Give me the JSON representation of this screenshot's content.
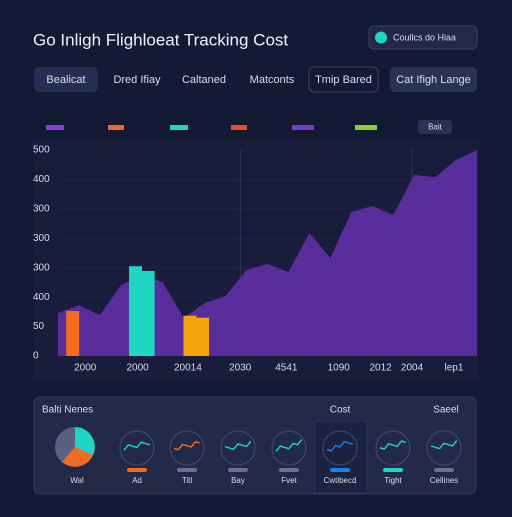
{
  "header": {
    "title": "Go Inligh Flighloeat Tracking Cost",
    "dropdown": "Coullcs do Hiaa"
  },
  "tabs": [
    "Bealicat",
    "Dred Ifiay",
    "Caltaned",
    "Matconts",
    "Tmip Bared",
    "Cat Ifigh Lange"
  ],
  "legend_chip": "Bait",
  "chart_data": {
    "type": "area",
    "x": [
      0,
      1,
      2,
      3,
      4,
      5,
      6,
      7,
      8,
      9,
      10,
      11,
      12,
      13,
      14,
      15,
      16,
      17,
      18,
      19,
      20
    ],
    "xlim": [
      0,
      20
    ],
    "xticks": [
      {
        "value": 1.3,
        "label": "2000"
      },
      {
        "value": 3.8,
        "label": "2000"
      },
      {
        "value": 6.2,
        "label": "20014"
      },
      {
        "value": 8.7,
        "label": "2030"
      },
      {
        "value": 10.9,
        "label": "4541"
      },
      {
        "value": 13.4,
        "label": "1090"
      },
      {
        "value": 15.4,
        "label": "2012"
      },
      {
        "value": 16.9,
        "label": "2004"
      },
      {
        "value": 18.9,
        "label": "lep1"
      }
    ],
    "ylim": [
      0,
      700
    ],
    "yticks": [
      0,
      {
        "value": 100,
        "label": "50"
      },
      {
        "value": 200,
        "label": "400"
      },
      {
        "value": 300,
        "label": "300"
      },
      {
        "value": 400,
        "label": "300"
      },
      {
        "value": 500,
        "label": "300"
      },
      {
        "value": 600,
        "label": "400"
      },
      {
        "value": 700,
        "label": "500"
      }
    ],
    "grid": true,
    "series": [
      {
        "type": "area",
        "color": "#5a2d9c",
        "values": [
          146,
          173,
          139,
          241,
          275,
          251,
          129,
          180,
          204,
          292,
          313,
          285,
          418,
          333,
          489,
          510,
          479,
          615,
          608,
          666,
          700
        ]
      },
      {
        "type": "bar",
        "color": "#f26b21",
        "x": [
          0.7
        ],
        "values": [
          153
        ]
      },
      {
        "type": "bar",
        "color": "#1ed6c3",
        "x": [
          3.7,
          4.3
        ],
        "values": [
          305,
          289
        ]
      },
      {
        "type": "bar",
        "color": "#f5a30b",
        "x": [
          6.3,
          6.9
        ],
        "values": [
          137,
          130
        ]
      }
    ]
  },
  "panel": {
    "title": "Balti Nenes",
    "col_cost": "Cost",
    "col_saeel": "Saeel",
    "cards": [
      "Wal",
      "Ad",
      "Titl",
      "Bay",
      "Fvet",
      "Cwtibecd",
      "Tight",
      "Cellines"
    ]
  }
}
